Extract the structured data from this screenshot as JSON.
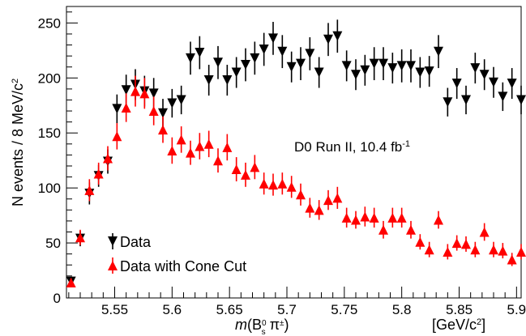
{
  "chart_data": {
    "type": "scatter",
    "xlabel": {
      "italic": "m",
      "rest": "(B",
      "sub": "s",
      "sup": "0",
      "tail": " π",
      "tail_sup": "±",
      "close": ")"
    },
    "xunit": {
      "pre": "[GeV/c",
      "sup": "2",
      "post": "]"
    },
    "ylabel": {
      "pre": "N events / 8 MeV/c",
      "sup": "2"
    },
    "xlim": [
      5.508,
      5.904
    ],
    "ylim": [
      0,
      265
    ],
    "x_ticks": [
      5.55,
      5.6,
      5.65,
      5.7,
      5.75,
      5.8,
      5.85,
      5.9
    ],
    "x_tick_labels": [
      "5.55",
      "5.6",
      "5.65",
      "5.7",
      "5.75",
      "5.8",
      "5.85",
      "5.9"
    ],
    "y_ticks": [
      0,
      50,
      100,
      150,
      200,
      250
    ],
    "y_tick_labels": [
      "0",
      "50",
      "100",
      "150",
      "200",
      "250"
    ],
    "annotation": {
      "main": "D0 Run II, 10.4 fb",
      "sup": "-1"
    },
    "legend_position": "bottom-left",
    "grid": false,
    "series": [
      {
        "name": "Data",
        "marker": "triangle-down",
        "color": "#000000",
        "x": [
          5.512,
          5.52,
          5.528,
          5.536,
          5.544,
          5.552,
          5.56,
          5.568,
          5.576,
          5.584,
          5.592,
          5.6,
          5.608,
          5.616,
          5.624,
          5.632,
          5.64,
          5.648,
          5.656,
          5.664,
          5.672,
          5.68,
          5.688,
          5.696,
          5.704,
          5.712,
          5.72,
          5.728,
          5.736,
          5.744,
          5.752,
          5.76,
          5.768,
          5.776,
          5.784,
          5.792,
          5.8,
          5.808,
          5.816,
          5.824,
          5.832,
          5.84,
          5.848,
          5.856,
          5.864,
          5.872,
          5.88,
          5.888,
          5.896,
          5.904
        ],
        "y": [
          15,
          54,
          95,
          111,
          124,
          172,
          189,
          194,
          188,
          186,
          168,
          177,
          180,
          218,
          223,
          198,
          214,
          198,
          205,
          212,
          218,
          226,
          236,
          224,
          210,
          213,
          222,
          205,
          235,
          238,
          211,
          203,
          207,
          213,
          213,
          209,
          211,
          211,
          205,
          206,
          224,
          178,
          195,
          180,
          209,
          203,
          196,
          183,
          195,
          180
        ],
        "err": [
          4,
          7,
          10,
          10,
          11,
          13,
          14,
          14,
          14,
          14,
          13,
          13,
          13,
          15,
          15,
          14,
          15,
          14,
          14,
          15,
          15,
          15,
          15,
          15,
          14,
          15,
          15,
          14,
          15,
          15,
          14,
          14,
          14,
          15,
          15,
          14,
          15,
          15,
          14,
          14,
          15,
          13,
          14,
          13,
          14,
          14,
          14,
          13,
          14,
          13
        ]
      },
      {
        "name": "Data with Cone Cut",
        "marker": "triangle-up",
        "color": "#ff0000",
        "x": [
          5.512,
          5.52,
          5.528,
          5.536,
          5.544,
          5.552,
          5.56,
          5.568,
          5.576,
          5.584,
          5.592,
          5.6,
          5.608,
          5.616,
          5.624,
          5.632,
          5.64,
          5.648,
          5.656,
          5.664,
          5.672,
          5.68,
          5.688,
          5.696,
          5.704,
          5.712,
          5.72,
          5.728,
          5.736,
          5.744,
          5.752,
          5.76,
          5.768,
          5.776,
          5.784,
          5.792,
          5.8,
          5.808,
          5.816,
          5.824,
          5.832,
          5.84,
          5.848,
          5.856,
          5.864,
          5.872,
          5.88,
          5.888,
          5.896,
          5.904
        ],
        "y": [
          14,
          55,
          98,
          113,
          127,
          147,
          173,
          188,
          186,
          170,
          153,
          134,
          144,
          132,
          138,
          140,
          125,
          137,
          117,
          112,
          119,
          104,
          103,
          104,
          101,
          94,
          82,
          80,
          89,
          91,
          73,
          71,
          74,
          73,
          62,
          73,
          73,
          62,
          51,
          44,
          71,
          42,
          50,
          49,
          44,
          60,
          44,
          43,
          35,
          42
        ],
        "err": [
          4,
          7,
          10,
          10,
          11,
          12,
          13,
          14,
          14,
          13,
          12,
          12,
          12,
          11,
          12,
          12,
          11,
          12,
          11,
          11,
          11,
          10,
          10,
          10,
          10,
          10,
          9,
          9,
          9,
          10,
          9,
          8,
          9,
          9,
          8,
          9,
          9,
          8,
          7,
          7,
          8,
          7,
          7,
          7,
          7,
          8,
          7,
          7,
          6,
          7
        ]
      }
    ]
  }
}
